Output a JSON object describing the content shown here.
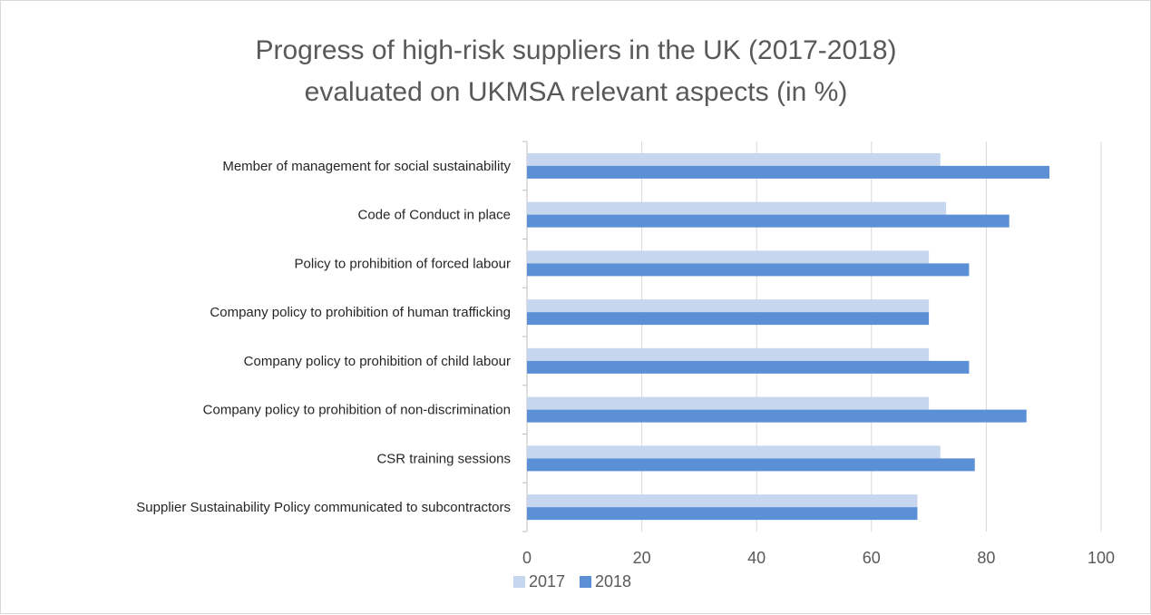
{
  "chart_data": {
    "type": "bar",
    "orientation": "horizontal",
    "title_lines": [
      "Progress of high-risk suppliers in the UK (2017-2018)",
      "evaluated on UKMSA relevant aspects (in %)"
    ],
    "categories": [
      "Member of management for social sustainability",
      "Code of Conduct in place",
      "Policy to prohibition of forced labour",
      "Company policy to prohibition of human trafficking",
      "Company policy to prohibition of child labour",
      "Company policy to prohibition of non-discrimination",
      "CSR training sessions",
      "Supplier Sustainability Policy communicated to subcontractors"
    ],
    "series": [
      {
        "name": "2017",
        "color": "#c5d6ee",
        "values": [
          72,
          73,
          70,
          70,
          70,
          70,
          72,
          68
        ]
      },
      {
        "name": "2018",
        "color": "#5b8fd6",
        "values": [
          91,
          84,
          77,
          70,
          77,
          87,
          78,
          68
        ]
      }
    ],
    "xlim": [
      0,
      100
    ],
    "xticks": [
      "0",
      "20",
      "40",
      "60",
      "80",
      "100"
    ],
    "grid": true,
    "legend_position": "bottom-left"
  }
}
